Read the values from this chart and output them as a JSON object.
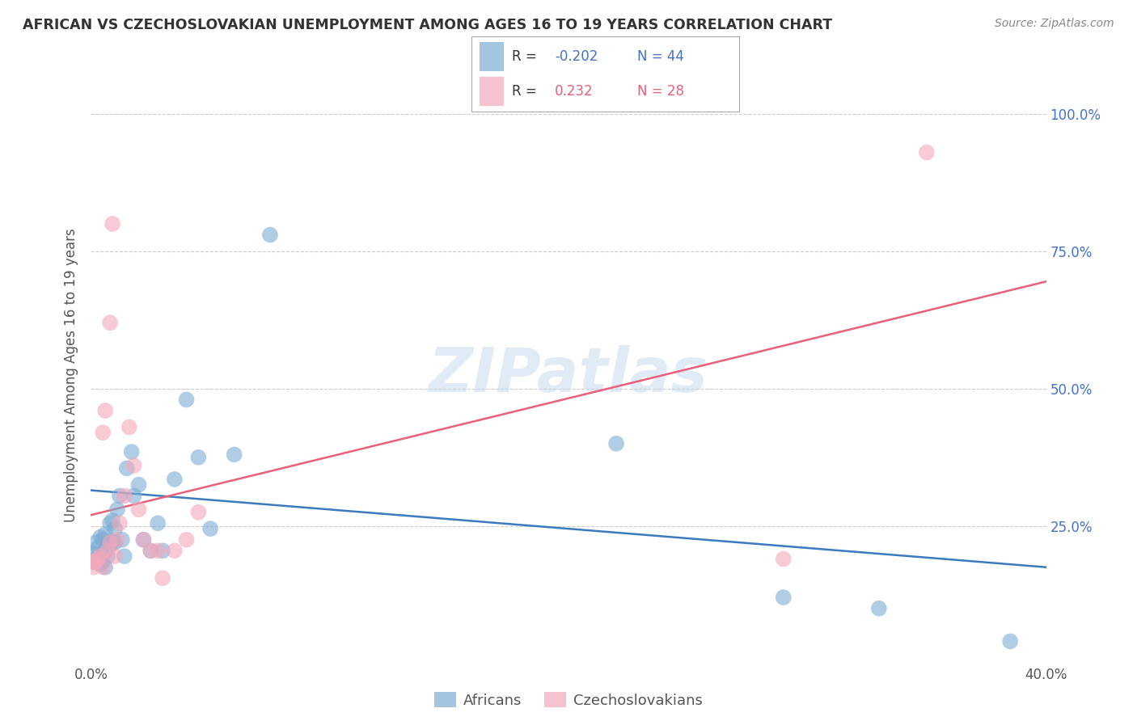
{
  "title": "AFRICAN VS CZECHOSLOVAKIAN UNEMPLOYMENT AMONG AGES 16 TO 19 YEARS CORRELATION CHART",
  "source": "Source: ZipAtlas.com",
  "ylabel": "Unemployment Among Ages 16 to 19 years",
  "xlim": [
    0.0,
    0.4
  ],
  "ylim": [
    0.0,
    1.05
  ],
  "yticks": [
    0.0,
    0.25,
    0.5,
    0.75,
    1.0
  ],
  "xticks": [
    0.0,
    0.05,
    0.1,
    0.15,
    0.2,
    0.25,
    0.3,
    0.35,
    0.4
  ],
  "african_color": "#7dadd4",
  "czechoslovakian_color": "#f4a8bb",
  "african_line_color": "#3a7abf",
  "czechoslovakian_line_color": "#e8607a",
  "legend_R_african": "-0.202",
  "legend_N_african": "44",
  "legend_R_czech": "0.232",
  "legend_N_czech": "28",
  "watermark": "ZIPatlas",
  "african_x": [
    0.001,
    0.001,
    0.002,
    0.002,
    0.003,
    0.003,
    0.004,
    0.004,
    0.005,
    0.005,
    0.005,
    0.006,
    0.006,
    0.006,
    0.007,
    0.007,
    0.008,
    0.008,
    0.009,
    0.009,
    0.01,
    0.01,
    0.011,
    0.012,
    0.013,
    0.014,
    0.015,
    0.017,
    0.018,
    0.02,
    0.022,
    0.025,
    0.028,
    0.03,
    0.035,
    0.04,
    0.045,
    0.05,
    0.06,
    0.075,
    0.22,
    0.29,
    0.33,
    0.385
  ],
  "african_y": [
    0.185,
    0.2,
    0.19,
    0.22,
    0.185,
    0.21,
    0.18,
    0.23,
    0.185,
    0.2,
    0.225,
    0.175,
    0.205,
    0.235,
    0.195,
    0.22,
    0.215,
    0.255,
    0.22,
    0.26,
    0.22,
    0.245,
    0.28,
    0.305,
    0.225,
    0.195,
    0.355,
    0.385,
    0.305,
    0.325,
    0.225,
    0.205,
    0.255,
    0.205,
    0.335,
    0.48,
    0.375,
    0.245,
    0.38,
    0.78,
    0.4,
    0.12,
    0.1,
    0.04
  ],
  "czech_x": [
    0.001,
    0.001,
    0.002,
    0.003,
    0.004,
    0.005,
    0.005,
    0.006,
    0.007,
    0.008,
    0.008,
    0.009,
    0.01,
    0.011,
    0.012,
    0.014,
    0.016,
    0.018,
    0.02,
    0.022,
    0.025,
    0.028,
    0.03,
    0.035,
    0.04,
    0.045,
    0.29,
    0.35
  ],
  "czech_y": [
    0.175,
    0.185,
    0.185,
    0.19,
    0.195,
    0.175,
    0.42,
    0.46,
    0.205,
    0.22,
    0.62,
    0.8,
    0.195,
    0.225,
    0.255,
    0.305,
    0.43,
    0.36,
    0.28,
    0.225,
    0.205,
    0.205,
    0.155,
    0.205,
    0.225,
    0.275,
    0.19,
    0.93
  ],
  "african_trendline_x": [
    0.0,
    0.4
  ],
  "african_trendline_y": [
    0.315,
    0.175
  ],
  "czech_trendline_x": [
    0.0,
    0.4
  ],
  "czech_trendline_y": [
    0.27,
    0.695
  ]
}
